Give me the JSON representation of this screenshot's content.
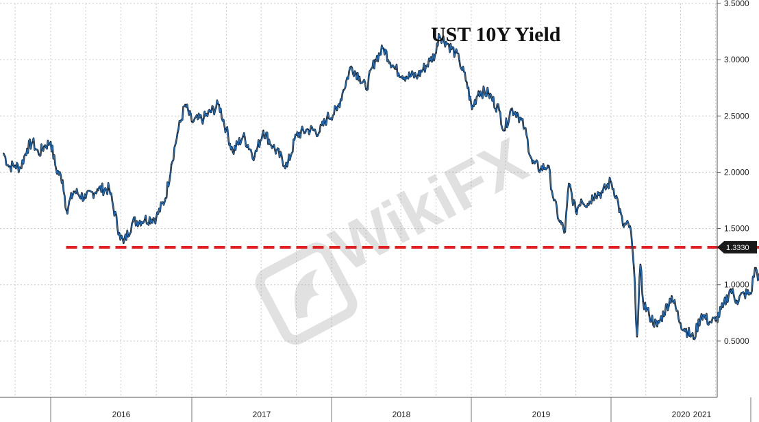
{
  "chart_data": {
    "type": "line",
    "title": "UST 10Y Yield",
    "xlabel": "",
    "ylabel": "",
    "ylim": [
      0.0,
      3.5
    ],
    "y_ticks": [
      "0.5000",
      "1.0000",
      "1.5000",
      "2.0000",
      "2.5000",
      "3.0000",
      "3.5000"
    ],
    "x_ticks": [
      "2016",
      "2017",
      "2018",
      "2019",
      "2020",
      "2021"
    ],
    "grid": true,
    "last_value": "1.3330",
    "reference_line": {
      "value": 1.333,
      "from": "2016-02-10",
      "to": "2021-02-12",
      "color": "#e02020"
    },
    "series": [
      {
        "color": "#1e6fbf",
        "x": [
          "2015-09-01",
          "2015-09-15",
          "2015-10-01",
          "2015-10-15",
          "2015-11-01",
          "2015-11-15",
          "2015-12-01",
          "2015-12-15",
          "2016-01-01",
          "2016-01-15",
          "2016-02-01",
          "2016-02-11",
          "2016-03-01",
          "2016-04-01",
          "2016-05-01",
          "2016-06-01",
          "2016-06-27",
          "2016-07-08",
          "2016-08-01",
          "2016-09-01",
          "2016-10-01",
          "2016-10-25",
          "2016-11-09",
          "2016-11-25",
          "2016-12-15",
          "2017-01-01",
          "2017-02-01",
          "2017-03-13",
          "2017-04-01",
          "2017-04-18",
          "2017-05-15",
          "2017-06-14",
          "2017-07-07",
          "2017-08-01",
          "2017-09-07",
          "2017-10-01",
          "2017-11-01",
          "2017-12-01",
          "2017-12-20",
          "2018-01-15",
          "2018-02-01",
          "2018-02-21",
          "2018-03-15",
          "2018-04-01",
          "2018-04-25",
          "2018-05-17",
          "2018-06-15",
          "2018-07-15",
          "2018-08-15",
          "2018-09-15",
          "2018-10-01",
          "2018-10-08",
          "2018-11-01",
          "2018-11-20",
          "2018-12-01",
          "2018-12-20",
          "2019-01-03",
          "2019-01-20",
          "2019-02-15",
          "2019-03-15",
          "2019-03-28",
          "2019-04-15",
          "2019-05-01",
          "2019-05-20",
          "2019-06-10",
          "2019-07-01",
          "2019-07-20",
          "2019-08-05",
          "2019-08-20",
          "2019-09-03",
          "2019-09-13",
          "2019-10-01",
          "2019-10-15",
          "2019-11-01",
          "2019-11-20",
          "2019-12-10",
          "2019-12-31",
          "2020-01-15",
          "2020-02-01",
          "2020-02-20",
          "2020-03-01",
          "2020-03-09",
          "2020-03-18",
          "2020-03-25",
          "2020-04-10",
          "2020-05-01",
          "2020-06-08",
          "2020-07-01",
          "2020-08-04",
          "2020-08-25",
          "2020-09-15",
          "2020-10-01",
          "2020-10-20",
          "2020-11-09",
          "2020-11-25",
          "2020-12-15",
          "2021-01-01",
          "2021-01-12",
          "2021-01-25",
          "2021-02-05",
          "2021-02-12"
        ],
        "y": [
          2.17,
          2.05,
          2.06,
          2.04,
          2.21,
          2.27,
          2.16,
          2.23,
          2.27,
          2.03,
          1.93,
          1.66,
          1.83,
          1.77,
          1.85,
          1.85,
          1.46,
          1.37,
          1.56,
          1.58,
          1.6,
          1.77,
          2.07,
          2.35,
          2.6,
          2.45,
          2.48,
          2.6,
          2.38,
          2.18,
          2.32,
          2.14,
          2.37,
          2.23,
          2.05,
          2.33,
          2.38,
          2.36,
          2.48,
          2.55,
          2.73,
          2.94,
          2.85,
          2.74,
          3.0,
          3.1,
          2.92,
          2.85,
          2.86,
          2.99,
          3.06,
          3.23,
          3.14,
          3.06,
          2.99,
          2.8,
          2.56,
          2.72,
          2.7,
          2.55,
          2.37,
          2.56,
          2.53,
          2.39,
          2.08,
          2.03,
          2.06,
          1.75,
          1.56,
          1.47,
          1.9,
          1.65,
          1.76,
          1.72,
          1.81,
          1.82,
          1.92,
          1.79,
          1.53,
          1.52,
          1.15,
          0.54,
          1.18,
          0.85,
          0.73,
          0.63,
          0.9,
          0.66,
          0.52,
          0.74,
          0.67,
          0.68,
          0.8,
          0.96,
          0.86,
          0.92,
          0.92,
          1.15,
          1.04,
          1.17,
          1.33
        ]
      }
    ]
  }
}
